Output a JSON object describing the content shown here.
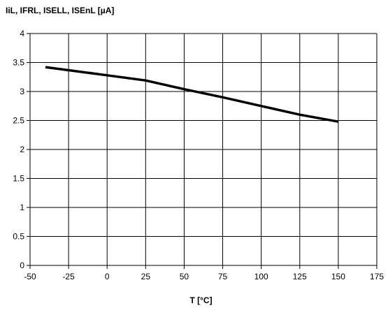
{
  "chart_data": {
    "type": "line",
    "title": "",
    "ylabel": "IiL, IFRL, ISELL, ISEnL [µA]",
    "xlabel": "T [°C]",
    "xlim": [
      -50,
      175
    ],
    "ylim": [
      0,
      4
    ],
    "xticks": [
      -50,
      -25,
      0,
      25,
      50,
      75,
      100,
      125,
      150,
      175
    ],
    "yticks": [
      0,
      0.5,
      1,
      1.5,
      2,
      2.5,
      3,
      3.5,
      4
    ],
    "xtick_labels": [
      "-50",
      "-25",
      "0",
      "25",
      "50",
      "75",
      "100",
      "125",
      "150",
      "175"
    ],
    "ytick_labels": [
      "0",
      "0.5",
      "1",
      "1.5",
      "2",
      "2.5",
      "3",
      "3.5",
      "4"
    ],
    "grid": true,
    "legend": "none",
    "line_color": "#000000",
    "series": [
      {
        "x": [
          -40,
          0,
          25,
          50,
          75,
          100,
          125,
          150
        ],
        "y": [
          3.42,
          3.28,
          3.19,
          3.04,
          2.9,
          2.75,
          2.6,
          2.48
        ]
      }
    ]
  }
}
